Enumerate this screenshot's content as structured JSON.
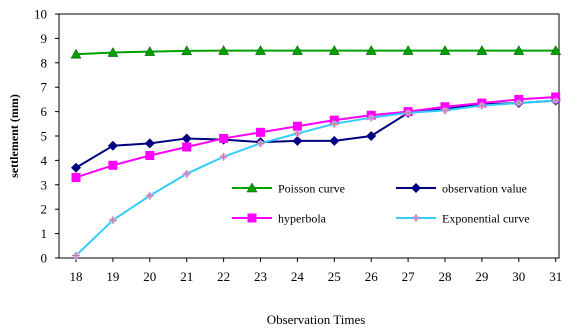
{
  "chart_data": {
    "type": "line",
    "title": "",
    "xlabel": "Observation Times",
    "ylabel": "settlement (mm)",
    "x": [
      18,
      19,
      20,
      21,
      22,
      23,
      24,
      25,
      26,
      27,
      28,
      29,
      30,
      31
    ],
    "ylim": [
      0,
      10
    ],
    "yticks": [
      0,
      1,
      2,
      3,
      4,
      5,
      6,
      7,
      8,
      9,
      10
    ],
    "grid": false,
    "legend_position": "lower-right inside plot",
    "series": [
      {
        "name": "Poisson curve",
        "color": "#00a000",
        "marker": "triangle",
        "values": [
          8.35,
          8.42,
          8.46,
          8.49,
          8.5,
          8.5,
          8.5,
          8.5,
          8.5,
          8.5,
          8.5,
          8.5,
          8.5,
          8.5
        ]
      },
      {
        "name": "observation value",
        "color": "#000080",
        "marker": "diamond",
        "values": [
          3.7,
          4.6,
          4.7,
          4.9,
          4.85,
          4.75,
          4.8,
          4.8,
          5.0,
          5.95,
          6.1,
          6.3,
          6.35,
          6.45
        ]
      },
      {
        "name": "hyperbola",
        "color": "#ff00ff",
        "marker": "square",
        "values": [
          3.3,
          3.8,
          4.2,
          4.55,
          4.9,
          5.15,
          5.4,
          5.65,
          5.85,
          6.0,
          6.2,
          6.35,
          6.5,
          6.6
        ]
      },
      {
        "name": "Exponential curve",
        "color": "#33ccff",
        "marker": "star",
        "values": [
          0.1,
          1.55,
          2.55,
          3.45,
          4.15,
          4.7,
          5.1,
          5.5,
          5.75,
          5.95,
          6.05,
          6.25,
          6.35,
          6.45
        ]
      }
    ]
  }
}
